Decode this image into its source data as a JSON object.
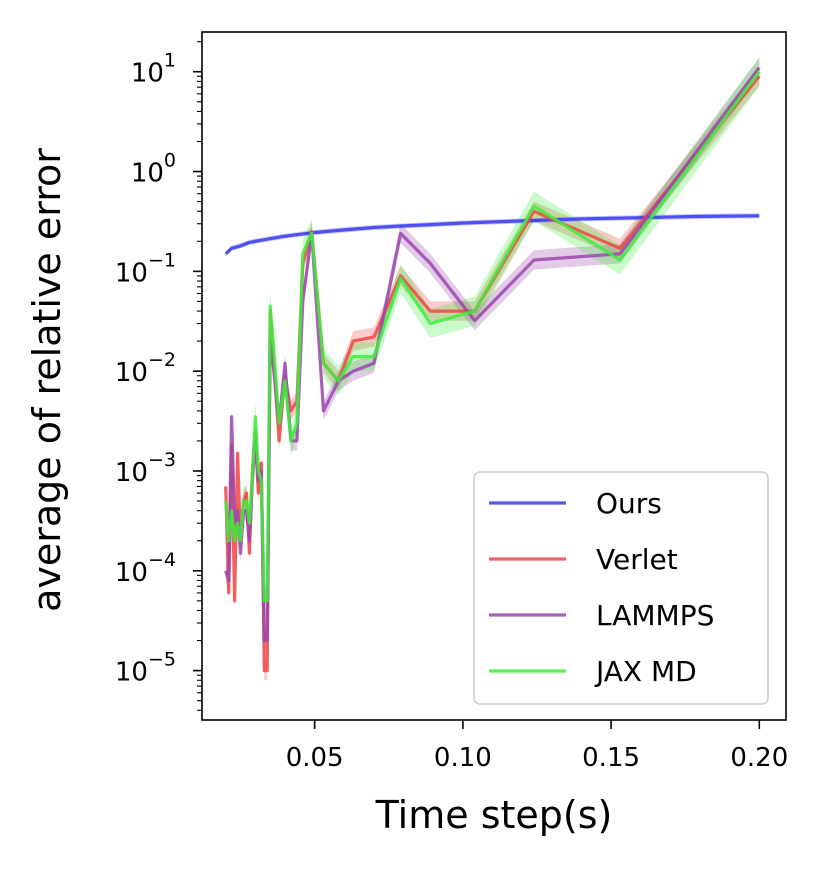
{
  "chart_data": {
    "type": "line",
    "title": "",
    "xlabel": "Time step(s)",
    "ylabel": "average of relative error",
    "xlim": [
      0.012,
      0.209
    ],
    "ylim": [
      3.2e-06,
      25
    ],
    "yscale": "log",
    "grid": false,
    "legend_position": "lower-right",
    "xticks": [
      0.05,
      0.1,
      0.15,
      0.2
    ],
    "xtick_labels": [
      "0.05",
      "0.10",
      "0.15",
      "0.20"
    ],
    "yticks": [
      {
        "value": 1e-05,
        "base": "10",
        "exp": "−5"
      },
      {
        "value": 0.0001,
        "base": "10",
        "exp": "−4"
      },
      {
        "value": 0.001,
        "base": "10",
        "exp": "−3"
      },
      {
        "value": 0.01,
        "base": "10",
        "exp": "−2"
      },
      {
        "value": 0.1,
        "base": "10",
        "exp": "−1"
      },
      {
        "value": 1,
        "base": "10",
        "exp": "0"
      },
      {
        "value": 10,
        "base": "10",
        "exp": "1"
      }
    ],
    "series": [
      {
        "name": "Ours",
        "color": "#3a3af0",
        "band": 0.06,
        "x": [
          0.02,
          0.022,
          0.025,
          0.028,
          0.032,
          0.036,
          0.04,
          0.045,
          0.05,
          0.06,
          0.07,
          0.08,
          0.09,
          0.1,
          0.12,
          0.14,
          0.16,
          0.18,
          0.2
        ],
        "y": [
          0.15,
          0.17,
          0.18,
          0.195,
          0.205,
          0.215,
          0.225,
          0.235,
          0.245,
          0.26,
          0.275,
          0.285,
          0.295,
          0.305,
          0.32,
          0.335,
          0.345,
          0.355,
          0.36
        ]
      },
      {
        "name": "Verlet",
        "color": "#f04545",
        "band": 0.25,
        "x": [
          0.02,
          0.021,
          0.022,
          0.023,
          0.024,
          0.025,
          0.026,
          0.027,
          0.028,
          0.029,
          0.03,
          0.031,
          0.032,
          0.033,
          0.034,
          0.035,
          0.036,
          0.038,
          0.04,
          0.042,
          0.044,
          0.046,
          0.049,
          0.053,
          0.058,
          0.063,
          0.07,
          0.079,
          0.089,
          0.104,
          0.124,
          0.153,
          0.2
        ],
        "y": [
          0.0007,
          6e-05,
          0.0018,
          5e-05,
          0.0015,
          0.0002,
          0.0005,
          0.0006,
          0.00015,
          0.001,
          0.0025,
          0.0006,
          0.0012,
          1e-05,
          1e-05,
          0.04,
          0.015,
          0.002,
          0.009,
          0.004,
          0.005,
          0.12,
          0.25,
          0.012,
          0.008,
          0.02,
          0.022,
          0.09,
          0.04,
          0.04,
          0.4,
          0.17,
          9
        ]
      },
      {
        "name": "LAMMPS",
        "color": "#9b45ad",
        "band": 0.25,
        "x": [
          0.02,
          0.021,
          0.022,
          0.023,
          0.024,
          0.025,
          0.026,
          0.027,
          0.028,
          0.029,
          0.03,
          0.031,
          0.032,
          0.033,
          0.034,
          0.035,
          0.036,
          0.038,
          0.04,
          0.042,
          0.044,
          0.046,
          0.049,
          0.053,
          0.058,
          0.063,
          0.07,
          0.079,
          0.089,
          0.104,
          0.124,
          0.153,
          0.2
        ],
        "y": [
          0.0001,
          8e-05,
          0.0035,
          0.0003,
          0.0004,
          0.00015,
          0.0004,
          0.0004,
          0.0002,
          0.0008,
          0.002,
          0.0008,
          0.001,
          2e-05,
          2e-05,
          0.02,
          0.012,
          0.003,
          0.012,
          0.002,
          0.002,
          0.05,
          0.24,
          0.004,
          0.008,
          0.01,
          0.012,
          0.24,
          0.12,
          0.032,
          0.13,
          0.15,
          11
        ]
      },
      {
        "name": "JAX MD",
        "color": "#3ded3d",
        "band": 0.4,
        "x": [
          0.02,
          0.021,
          0.022,
          0.023,
          0.024,
          0.025,
          0.026,
          0.027,
          0.028,
          0.029,
          0.03,
          0.031,
          0.032,
          0.033,
          0.034,
          0.035,
          0.036,
          0.038,
          0.04,
          0.042,
          0.044,
          0.046,
          0.049,
          0.053,
          0.058,
          0.063,
          0.07,
          0.079,
          0.089,
          0.104,
          0.124,
          0.153,
          0.2
        ],
        "y": [
          0.0005,
          0.0002,
          0.0004,
          0.0002,
          0.0003,
          0.0002,
          0.0005,
          0.0005,
          0.0003,
          0.0009,
          0.0035,
          0.001,
          0.0008,
          5e-05,
          5e-05,
          0.045,
          0.02,
          0.003,
          0.008,
          0.002,
          0.003,
          0.15,
          0.24,
          0.012,
          0.008,
          0.014,
          0.014,
          0.085,
          0.03,
          0.04,
          0.45,
          0.13,
          10
        ]
      }
    ]
  }
}
